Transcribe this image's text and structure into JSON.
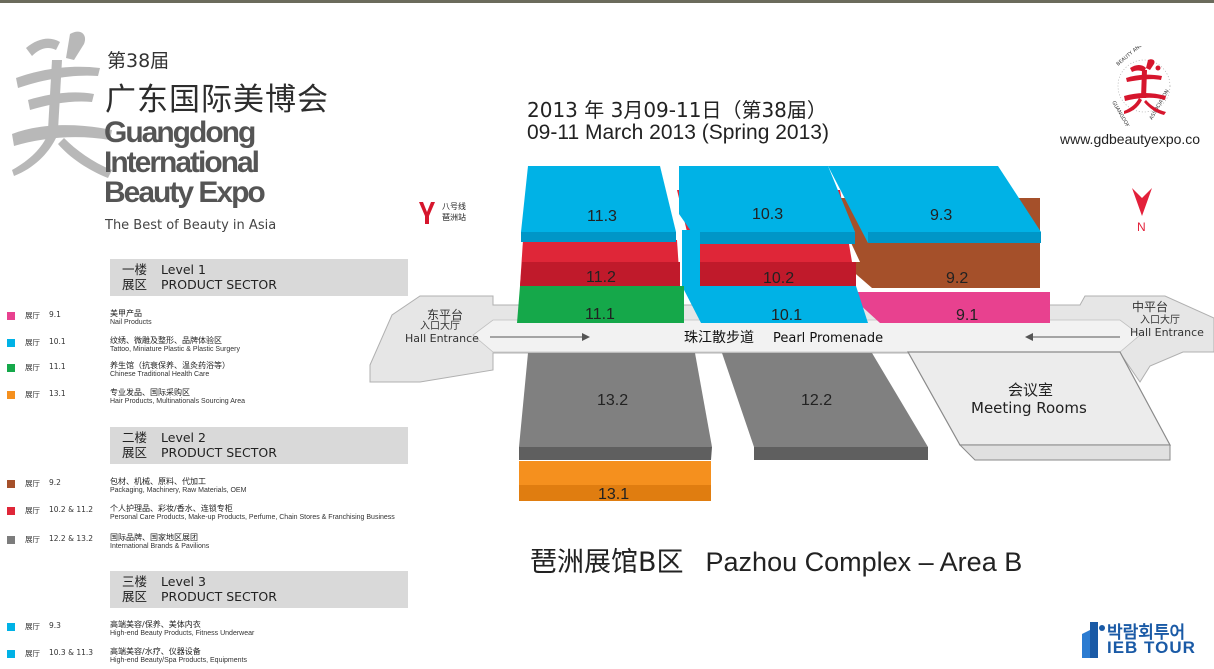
{
  "brand": {
    "edition": "第38届",
    "title_cn": "广东国际美博会",
    "title_en_line1": "Guangdong",
    "title_en_line2": "International",
    "title_en_line3": "Beauty Expo",
    "tagline": "The Best of Beauty in Asia",
    "website": "www.gdbeautyexpo.co"
  },
  "dates": {
    "cn": "2013 年 3月09-11日（第38届）",
    "en": "09-11 March 2013 (Spring 2013)"
  },
  "metro": {
    "line": "八号线",
    "station": "琶洲站"
  },
  "north_label": "N",
  "legend": {
    "levels": [
      {
        "floor_cn": "一楼",
        "sector_cn": "展区",
        "floor_en": "Level 1",
        "sector_en": "PRODUCT SECTOR",
        "items": [
          {
            "hall_label": "展厅",
            "hall": "9.1",
            "cn": "美甲产品",
            "en": "Nail Products",
            "color": "#e8418f"
          },
          {
            "hall_label": "展厅",
            "hall": "10.1",
            "cn": "纹绣、微雕及整形、品牌体验区",
            "en": "Tattoo, Miniature Plastic & Plastic Surgery",
            "color": "#00b2e6"
          },
          {
            "hall_label": "展厅",
            "hall": "11.1",
            "cn": "养生馆（抗衰保养、温灸药浴等）",
            "en": "Chinese Traditional Health Care",
            "color": "#15a84a"
          },
          {
            "hall_label": "展厅",
            "hall": "13.1",
            "cn": "专业发品、国际采购区",
            "en": "Hair Products, Multinationals Sourcing Area",
            "color": "#f5901e"
          }
        ]
      },
      {
        "floor_cn": "二楼",
        "sector_cn": "展区",
        "floor_en": "Level 2",
        "sector_en": "PRODUCT SECTOR",
        "items": [
          {
            "hall_label": "展厅",
            "hall": "9.2",
            "cn": "包材、机械、原料、代加工",
            "en": "Packaging, Machinery, Raw Materials, OEM",
            "color": "#a5502a"
          },
          {
            "hall_label": "展厅",
            "hall": "10.2 & 11.2",
            "cn": "个人护理品、彩妆/香水、连锁专柜",
            "en": "Personal Care Products, Make-up Products, Perfume, Chain Stores & Franchising Business",
            "color": "#df2638"
          },
          {
            "hall_label": "展厅",
            "hall": "12.2 & 13.2",
            "cn": "国际品牌、国家地区展团",
            "en": "International Brands & Pavilions",
            "color": "#7c7c7c"
          }
        ]
      },
      {
        "floor_cn": "三楼",
        "sector_cn": "展区",
        "floor_en": "Level 3",
        "sector_en": "PRODUCT SECTOR",
        "items": [
          {
            "hall_label": "展厅",
            "hall": "9.3",
            "cn": "高端美容/保养、美体内衣",
            "en": "High-end Beauty Products, Fitness Underwear",
            "color": "#00b2e6"
          },
          {
            "hall_label": "展厅",
            "hall": "10.3 & 11.3",
            "cn": "高端美容/水疗、仪器设备",
            "en": "High-end Beauty/Spa Products, Equipments",
            "color": "#00b2e6"
          }
        ]
      }
    ]
  },
  "map": {
    "halls": [
      {
        "id": "11.3",
        "color": "#00b2e6"
      },
      {
        "id": "10.3",
        "color": "#00b2e6"
      },
      {
        "id": "9.3",
        "color": "#00b2e6"
      },
      {
        "id": "11.2",
        "color": "#df2638"
      },
      {
        "id": "10.2",
        "color": "#df2638"
      },
      {
        "id": "9.2",
        "color": "#a5502a"
      },
      {
        "id": "11.1",
        "color": "#15a84a"
      },
      {
        "id": "10.1",
        "color": "#00b2e6"
      },
      {
        "id": "9.1",
        "color": "#e8418f"
      },
      {
        "id": "13.2",
        "color": "#7c7c7c"
      },
      {
        "id": "12.2",
        "color": "#7c7c7c"
      },
      {
        "id": "13.1",
        "color": "#f5901e"
      }
    ],
    "east_entrance_cn1": "东平台",
    "east_entrance_cn2": "入口大厅",
    "east_entrance_en": "Hall Entrance",
    "middle_entrance_cn1": "中平台",
    "middle_entrance_cn2": "入口大厅",
    "middle_entrance_en": "Hall Entrance",
    "promenade_cn": "珠江散步道",
    "promenade_en": "Pearl Promenade",
    "meeting_cn": "会议室",
    "meeting_en": "Meeting Rooms"
  },
  "complex": {
    "cn": "琶洲展馆B区",
    "en": "Pazhou Complex – Area B"
  },
  "sponsor": {
    "cn": "박람회투어",
    "en": "IEB TOUR"
  }
}
